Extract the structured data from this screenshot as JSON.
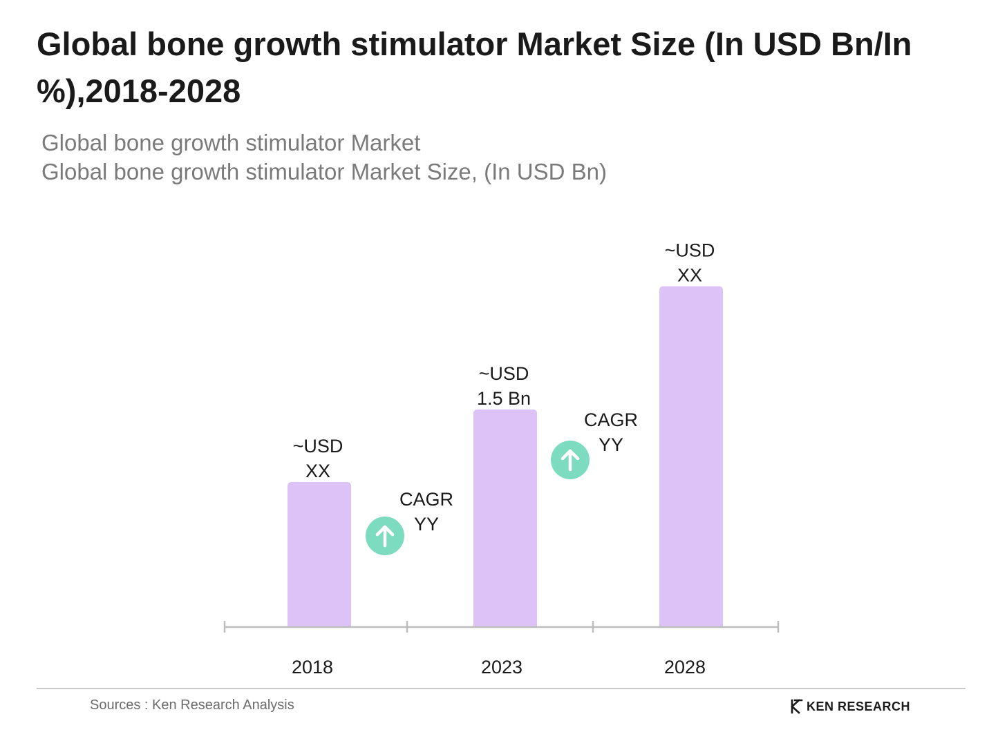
{
  "title": "Global bone growth stimulator Market Size (In USD Bn/In %),2018-2028",
  "subtitle_1": "Global bone growth stimulator Market",
  "subtitle_2": "Global bone growth stimulator Market Size, (In USD Bn)",
  "colors": {
    "bar": "#dcc2f6",
    "axis": "#bdbdbd",
    "cagr_icon": "#7ddcc0"
  },
  "chart_data": {
    "type": "bar",
    "categories": [
      "2018",
      "2023",
      "2028"
    ],
    "values": [
      1.0,
      1.5,
      2.35
    ],
    "data_labels": [
      [
        "~USD",
        "XX"
      ],
      [
        "~USD",
        "1.5 Bn"
      ],
      [
        "~USD",
        "XX"
      ]
    ],
    "cagr_annotations": [
      {
        "label": [
          "CAGR",
          "YY"
        ],
        "period": "2018-2023",
        "icon": "arrow-up-icon"
      },
      {
        "label": [
          "CAGR",
          "YY"
        ],
        "period": "2023-2028",
        "icon": "arrow-up-icon"
      }
    ],
    "ylim": [
      0,
      2.5
    ],
    "grid": false,
    "legend": "none"
  },
  "footer": {
    "source": "Sources : Ken Research Analysis",
    "brand": "KEN RESEARCH",
    "brand_icon": "ken-research-logo-icon"
  }
}
